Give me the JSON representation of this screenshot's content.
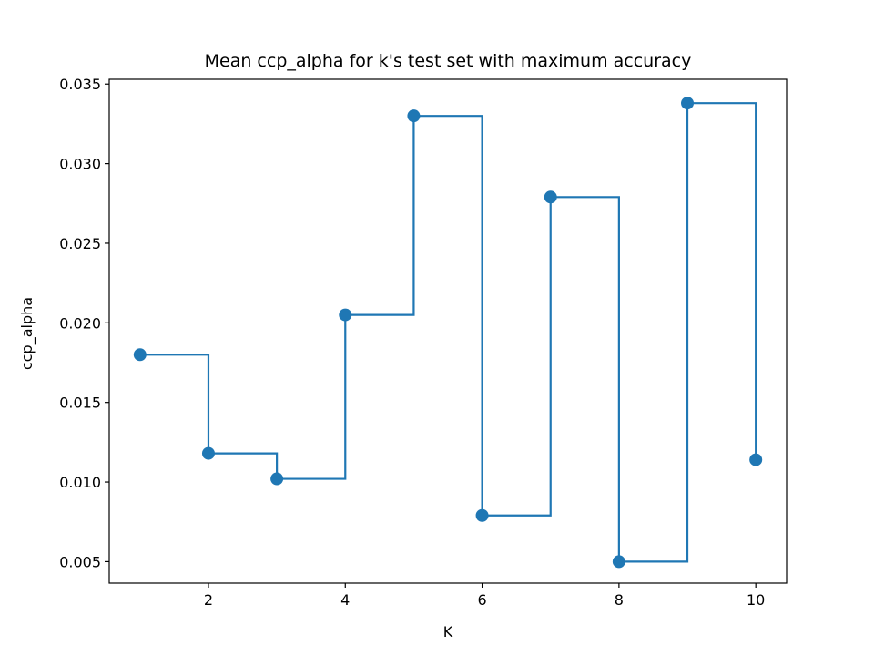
{
  "chart_data": {
    "type": "line",
    "title": "Mean ccp_alpha for k's test set with maximum accuracy",
    "xlabel": "K",
    "ylabel": "ccp_alpha",
    "xlim": [
      0.55,
      10.45
    ],
    "ylim": [
      0.00365,
      0.0353
    ],
    "xticks": [
      2,
      4,
      6,
      8,
      10
    ],
    "yticks": [
      0.005,
      0.01,
      0.015,
      0.02,
      0.025,
      0.03,
      0.035
    ],
    "ytick_labels": [
      "0.005",
      "0.010",
      "0.015",
      "0.020",
      "0.025",
      "0.030",
      "0.035"
    ],
    "grid": false,
    "series": [
      {
        "step": "post",
        "markers": true,
        "color": "#1f77b4",
        "x": [
          1,
          2,
          3,
          4,
          5,
          6,
          7,
          8,
          9,
          10
        ],
        "values": [
          0.018,
          0.0118,
          0.0102,
          0.0205,
          0.033,
          0.0079,
          0.0279,
          0.005,
          0.0338,
          0.0114
        ]
      }
    ]
  }
}
